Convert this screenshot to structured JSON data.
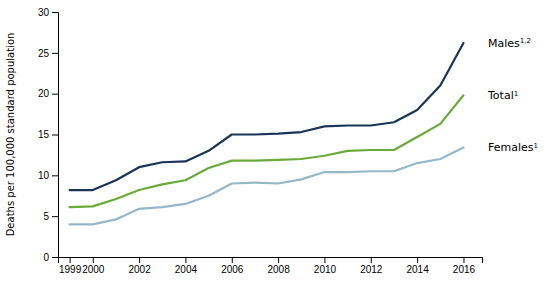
{
  "chart_data": {
    "type": "line",
    "y_label": "Deaths per 100,000 standard population",
    "x": [
      1999,
      2000,
      2001,
      2002,
      2003,
      2004,
      2005,
      2006,
      2007,
      2008,
      2009,
      2010,
      2011,
      2012,
      2013,
      2014,
      2015,
      2016
    ],
    "series": [
      {
        "name": "Males",
        "superscript": "1,2",
        "color": "#1a3558",
        "values": [
          8.2,
          8.2,
          9.4,
          11.0,
          11.6,
          11.7,
          13.0,
          15.0,
          15.0,
          15.1,
          15.3,
          16.0,
          16.1,
          16.1,
          16.5,
          18.0,
          21.0,
          26.2
        ]
      },
      {
        "name": "Total",
        "superscript": "1",
        "color": "#6aaa3a",
        "values": [
          6.1,
          6.2,
          7.1,
          8.2,
          8.9,
          9.4,
          10.9,
          11.8,
          11.8,
          11.9,
          12.0,
          12.4,
          13.0,
          13.1,
          13.1,
          14.7,
          16.3,
          19.8
        ]
      },
      {
        "name": "Females",
        "superscript": "1",
        "color": "#94b8c8",
        "values": [
          4.0,
          4.0,
          4.6,
          5.9,
          6.1,
          6.5,
          7.5,
          9.0,
          9.1,
          9.0,
          9.5,
          10.4,
          10.4,
          10.5,
          10.5,
          11.5,
          12.0,
          13.4
        ]
      }
    ],
    "xlim": [
      1998.5,
      2016.8
    ],
    "xticks": [
      1999,
      2000,
      2002,
      2004,
      2006,
      2008,
      2010,
      2012,
      2014,
      2016
    ],
    "ylim": [
      0,
      30
    ],
    "yticks": [
      0,
      5,
      10,
      15,
      20,
      25,
      30
    ],
    "grid": false
  }
}
